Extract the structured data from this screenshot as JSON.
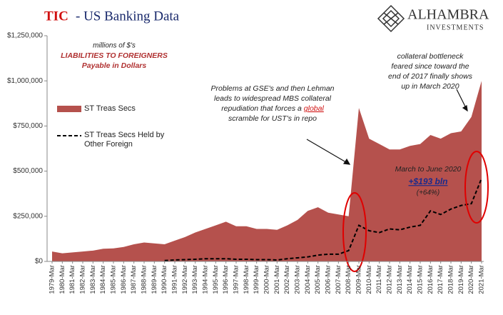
{
  "chart_data": {
    "type": "area_line",
    "title_prefix": "TIC",
    "title": "- US Banking Data",
    "logo": {
      "name": "ALHAMBRA",
      "sub": "INVESTMENTS"
    },
    "categories": [
      "1979-Mar",
      "1980-Mar",
      "1981-Mar",
      "1982-Mar",
      "1983-Mar",
      "1984-Mar",
      "1985-Mar",
      "1986-Mar",
      "1987-Mar",
      "1988-Mar",
      "1989-Mar",
      "1990-Mar",
      "1991-Mar",
      "1992-Mar",
      "1993-Mar",
      "1994-Mar",
      "1995-Mar",
      "1996-Mar",
      "1997-Mar",
      "1998-Mar",
      "1999-Mar",
      "2000-Mar",
      "2001-Mar",
      "2002-Mar",
      "2003-Mar",
      "2004-Mar",
      "2005-Mar",
      "2006-Mar",
      "2007-Mar",
      "2008-Mar",
      "2009-Mar",
      "2010-Mar",
      "2011-Mar",
      "2012-Mar",
      "2013-Mar",
      "2014-Mar",
      "2015-Mar",
      "2016-Mar",
      "2017-Mar",
      "2018-Mar",
      "2019-Mar",
      "2020-Mar",
      "2021-Mar"
    ],
    "series": [
      {
        "name": "ST Treas Secs",
        "color": "#b5514d",
        "style": "area",
        "values": [
          55000,
          45000,
          50000,
          55000,
          60000,
          70000,
          72000,
          80000,
          95000,
          105000,
          100000,
          95000,
          115000,
          135000,
          160000,
          180000,
          200000,
          220000,
          195000,
          195000,
          180000,
          180000,
          175000,
          200000,
          230000,
          280000,
          300000,
          270000,
          260000,
          250000,
          850000,
          680000,
          650000,
          620000,
          620000,
          640000,
          650000,
          700000,
          680000,
          710000,
          720000,
          800000,
          1000000
        ]
      },
      {
        "name": "ST Treas Secs Held by Other Foreign",
        "color": "#000000",
        "style": "dashed",
        "values": [
          null,
          null,
          null,
          null,
          null,
          null,
          null,
          null,
          null,
          null,
          null,
          5000,
          8000,
          10000,
          12000,
          15000,
          15000,
          15000,
          12000,
          12000,
          10000,
          10000,
          8000,
          15000,
          20000,
          25000,
          35000,
          40000,
          40000,
          60000,
          200000,
          170000,
          160000,
          180000,
          175000,
          190000,
          200000,
          280000,
          260000,
          290000,
          310000,
          320000,
          460000
        ]
      }
    ],
    "ylim": [
      0,
      1250000
    ],
    "yticks": [
      {
        "value": 0,
        "label": "$0"
      },
      {
        "value": 250000,
        "label": "$250,000"
      },
      {
        "value": 500000,
        "label": "$500,000"
      },
      {
        "value": 750000,
        "label": "$750,000"
      },
      {
        "value": 1000000,
        "label": "$1,000,000"
      },
      {
        "value": 1250000,
        "label": "$1,250,000"
      }
    ],
    "grid": false,
    "annotations": {
      "units": [
        "millions of $'s",
        "LIABILITIES TO FOREIGNERS",
        "Payable in Dollars"
      ],
      "crisis": [
        "Problems at GSE's and then Lehman",
        "leads to widespread MBS collateral"
      ],
      "crisis_last": [
        "repudiation that forces a ",
        "global",
        ""
      ],
      "crisis_end": "scramble for UST's in repo",
      "bottleneck": [
        "collateral bottleneck",
        "feared since toward the",
        "end of  2017 finally shows",
        "up in March 2020"
      ],
      "change": [
        "March to June 2020",
        "+$193 bln",
        "(+64%)"
      ]
    }
  }
}
